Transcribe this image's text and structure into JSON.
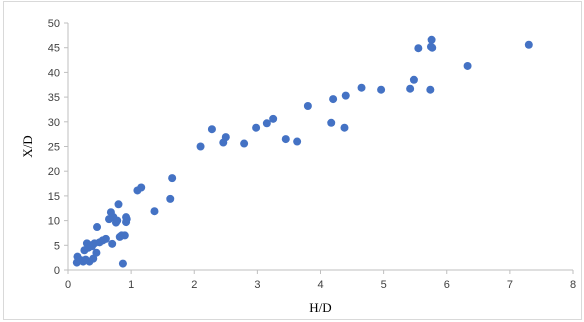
{
  "chart_data": {
    "type": "scatter",
    "title": "",
    "xlabel": "H/D",
    "ylabel": "X/D",
    "xlim": [
      0,
      8
    ],
    "ylim": [
      0,
      50
    ],
    "xticks": [
      0,
      1,
      2,
      3,
      4,
      5,
      6,
      7,
      8
    ],
    "yticks": [
      0,
      5,
      10,
      15,
      20,
      25,
      30,
      35,
      40,
      45,
      50
    ],
    "grid": false,
    "legend": "none",
    "marker_color": "#4472C4",
    "series": [
      {
        "x": [
          0.14,
          0.15,
          0.2,
          0.24,
          0.26,
          0.28,
          0.3,
          0.32,
          0.34,
          0.36,
          0.38,
          0.4,
          0.42,
          0.45,
          0.46,
          0.5,
          0.55,
          0.6,
          0.65,
          0.68,
          0.7,
          0.72,
          0.76,
          0.78,
          0.8,
          0.82,
          0.85,
          0.87,
          0.9,
          0.92,
          0.92,
          0.93,
          1.1,
          1.16,
          1.37,
          1.62,
          1.65,
          2.1,
          2.28,
          2.46,
          2.5,
          2.79,
          2.98,
          3.15,
          3.25,
          3.45,
          3.63,
          3.8,
          4.17,
          4.2,
          4.38,
          4.4,
          4.65,
          4.96,
          5.42,
          5.48,
          5.55,
          5.74,
          5.75,
          5.76,
          5.77,
          6.33,
          7.3
        ],
        "y": [
          1.5,
          2.7,
          2.0,
          1.7,
          4.0,
          2.1,
          5.4,
          4.5,
          1.7,
          5.0,
          4.8,
          2.3,
          5.4,
          3.5,
          8.7,
          5.6,
          6.0,
          6.3,
          10.3,
          11.7,
          5.3,
          10.7,
          9.6,
          10.0,
          13.3,
          6.7,
          7.0,
          1.3,
          7.0,
          9.7,
          10.7,
          10.3,
          16.1,
          16.7,
          11.9,
          14.4,
          18.6,
          25.0,
          28.5,
          25.8,
          26.9,
          25.6,
          28.8,
          29.7,
          30.6,
          26.5,
          26.0,
          33.2,
          29.8,
          34.6,
          28.8,
          35.3,
          36.9,
          36.5,
          36.7,
          38.5,
          44.9,
          36.5,
          45.2,
          46.6,
          45.0,
          41.3,
          45.6
        ]
      }
    ]
  }
}
